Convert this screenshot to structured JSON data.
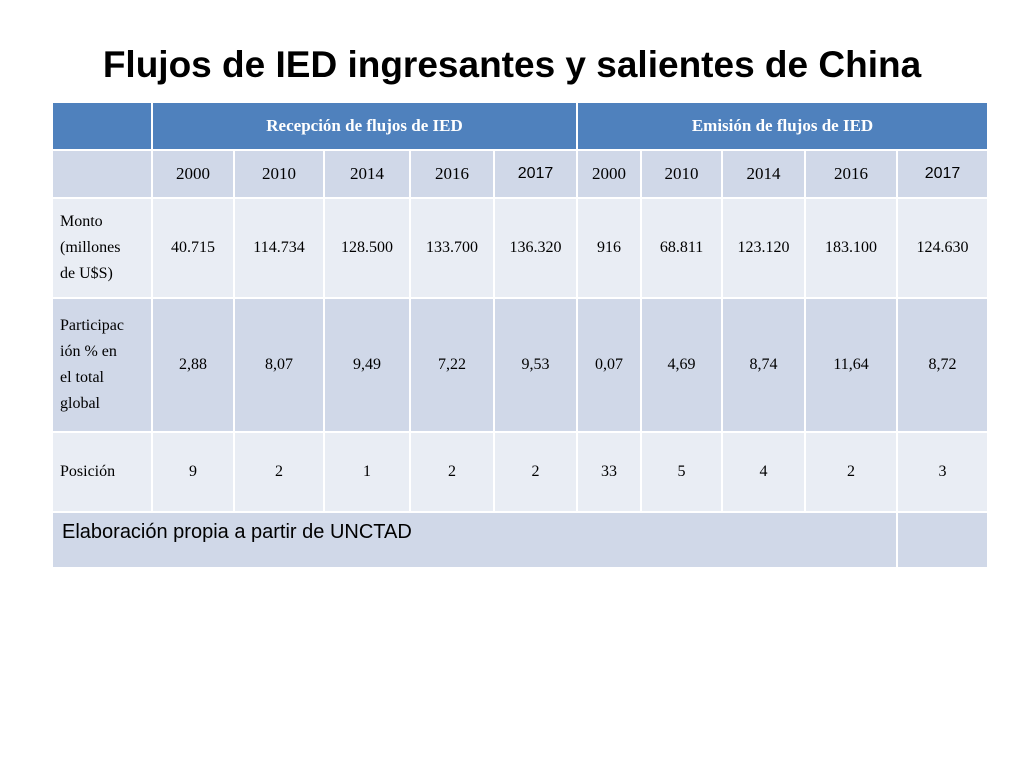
{
  "title": "Flujos de IED ingresantes y salientes de China",
  "table": {
    "group_headers": [
      "Recepción de flujos de IED",
      "Emisión de flujos de IED"
    ],
    "years": [
      "2000",
      "2010",
      "2014",
      "2016",
      "2017",
      "2000",
      "2010",
      "2014",
      "2016",
      "2017"
    ],
    "rows": [
      {
        "label_lines": [
          "Monto",
          "(millones",
          "de U$S)"
        ],
        "values": [
          "40.715",
          "114.734",
          "128.500",
          "133.700",
          "136.320",
          "916",
          "68.811",
          "123.120",
          "183.100",
          "124.630"
        ]
      },
      {
        "label_lines": [
          "Participac",
          "ión % en",
          "el total",
          "global"
        ],
        "values": [
          "2,88",
          "8,07",
          "9,49",
          "7,22",
          "9,53",
          "0,07",
          "4,69",
          "8,74",
          "11,64",
          "8,72"
        ]
      },
      {
        "label_lines": [
          "Posición"
        ],
        "values": [
          "9",
          "2",
          "1",
          "2",
          "2",
          "33",
          "5",
          "4",
          "2",
          "3"
        ]
      }
    ],
    "footnote": "Elaboración propia a partir de UNCTAD"
  }
}
